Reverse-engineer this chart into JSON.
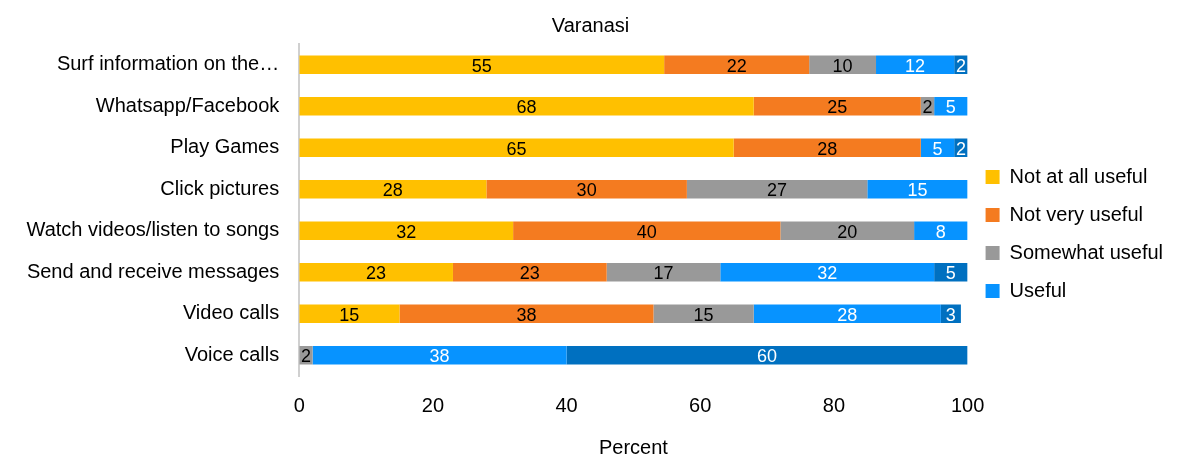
{
  "chart_data": {
    "type": "bar",
    "orientation": "horizontal",
    "stacked": true,
    "title": "Varanasi",
    "xlabel": "Percent",
    "categories": [
      "Surf information on the…",
      "Whatsapp/Facebook",
      "Play Games",
      "Click pictures",
      "Watch videos/listen to songs",
      "Send and receive messages",
      "Video calls",
      "Voice calls"
    ],
    "series": [
      {
        "name": "Not at all useful",
        "color": "#ffc000",
        "values": [
          54.6,
          68,
          65,
          28,
          32,
          23,
          15,
          null
        ],
        "value_labels": [
          "55",
          "68",
          "65",
          "28",
          "32",
          "23",
          "15",
          null
        ]
      },
      {
        "name": "Not very useful",
        "color": "#f47b20",
        "values": [
          21.7,
          25,
          28,
          30,
          40,
          23,
          38,
          null
        ],
        "value_labels": [
          "22",
          "25",
          "28",
          "30",
          "40",
          "23",
          "38",
          null
        ]
      },
      {
        "name": "Somewhat useful",
        "color": "#999999",
        "values": [
          10,
          2,
          null,
          27,
          20,
          17,
          15,
          2
        ],
        "value_labels": [
          "10",
          "2",
          null,
          "27",
          "20",
          "17",
          "15",
          "2"
        ]
      },
      {
        "name": "Useful",
        "color": "#0793ff",
        "values": [
          11.7,
          5,
          5,
          15,
          8,
          32,
          28,
          38
        ],
        "value_labels": [
          "12",
          "5",
          "5",
          "15",
          "8",
          "32",
          "28",
          "38"
        ]
      },
      {
        "color": "#0070c0",
        "values": [
          2,
          null,
          2,
          null,
          null,
          5,
          3,
          60
        ],
        "value_labels": [
          "2",
          null,
          "2",
          null,
          null,
          "5",
          "3",
          "60"
        ]
      }
    ],
    "xlim": [
      0,
      100
    ],
    "xticks": [
      0,
      20,
      40,
      60,
      80,
      100
    ],
    "grid": false,
    "legend": "right"
  }
}
